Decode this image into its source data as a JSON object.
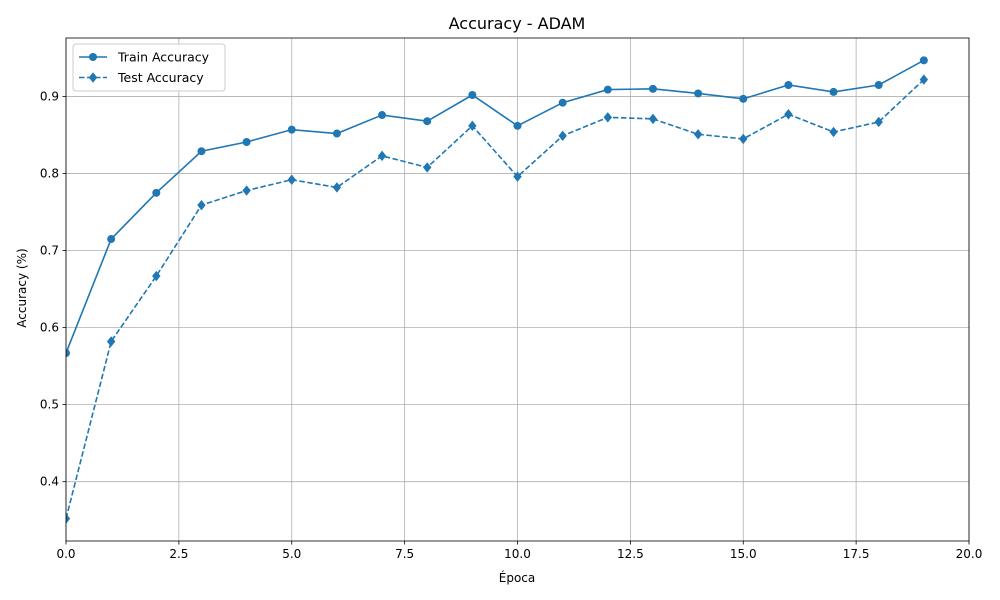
{
  "chart_data": {
    "type": "line",
    "title": "Accuracy - ADAM",
    "xlabel": "Época",
    "ylabel": "Accuracy (%)",
    "xlim": [
      0,
      20
    ],
    "ylim": [
      0.323,
      0.976
    ],
    "xticks": [
      0,
      2.5,
      5,
      7.5,
      10,
      12.5,
      15,
      17.5,
      20
    ],
    "xtick_labels": [
      "0.0",
      "2.5",
      "5.0",
      "7.5",
      "10.0",
      "12.5",
      "15.0",
      "17.5",
      "20.0"
    ],
    "yticks": [
      0.4,
      0.5,
      0.6,
      0.7,
      0.8,
      0.9
    ],
    "ytick_labels": [
      "0.4",
      "0.5",
      "0.6",
      "0.7",
      "0.8",
      "0.9"
    ],
    "grid": true,
    "legend_position": "top-left",
    "color": "#1f77b4",
    "x": [
      0,
      1,
      2,
      3,
      4,
      5,
      6,
      7,
      8,
      9,
      10,
      11,
      12,
      13,
      14,
      15,
      16,
      17,
      18,
      19
    ],
    "series": [
      {
        "name": "Train Accuracy",
        "marker": "circle",
        "line_style": "solid",
        "values": [
          0.567,
          0.715,
          0.775,
          0.829,
          0.841,
          0.857,
          0.852,
          0.876,
          0.868,
          0.902,
          0.862,
          0.892,
          0.909,
          0.91,
          0.904,
          0.897,
          0.915,
          0.906,
          0.915,
          0.947
        ]
      },
      {
        "name": "Test Accuracy",
        "marker": "diamond",
        "line_style": "dashed",
        "values": [
          0.352,
          0.582,
          0.667,
          0.759,
          0.778,
          0.792,
          0.782,
          0.823,
          0.808,
          0.862,
          0.796,
          0.849,
          0.873,
          0.871,
          0.851,
          0.845,
          0.877,
          0.854,
          0.867,
          0.922
        ]
      }
    ]
  }
}
